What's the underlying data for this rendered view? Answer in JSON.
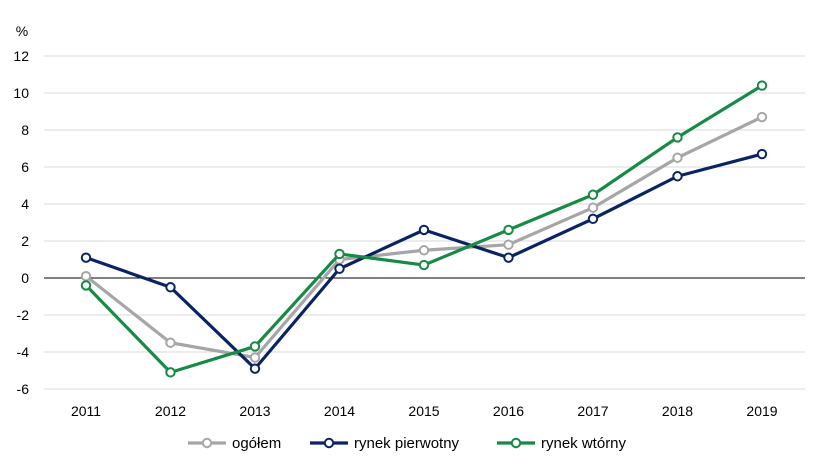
{
  "chart_data": {
    "type": "line",
    "title": "",
    "xlabel": "",
    "ylabel": "%",
    "ylim": [
      -6,
      12
    ],
    "yticks": [
      -6,
      -4,
      -2,
      0,
      2,
      4,
      6,
      8,
      10,
      12
    ],
    "categories": [
      "2011",
      "2012",
      "2013",
      "2014",
      "2015",
      "2016",
      "2017",
      "2018",
      "2019"
    ],
    "grid": true,
    "legend": "bottom",
    "series": [
      {
        "name": "ogółem",
        "color": "#a6a6a6",
        "values": [
          0.1,
          -3.5,
          -4.3,
          1.0,
          1.5,
          1.8,
          3.8,
          6.5,
          8.7
        ]
      },
      {
        "name": "rynek pierwotny",
        "color": "#0a2463",
        "values": [
          1.1,
          -0.5,
          -4.9,
          0.5,
          2.6,
          1.1,
          3.2,
          5.5,
          6.7
        ]
      },
      {
        "name": "rynek wtórny",
        "color": "#178a45",
        "values": [
          -0.4,
          -5.1,
          -3.7,
          1.3,
          0.7,
          2.6,
          4.5,
          7.6,
          10.4
        ]
      }
    ]
  }
}
